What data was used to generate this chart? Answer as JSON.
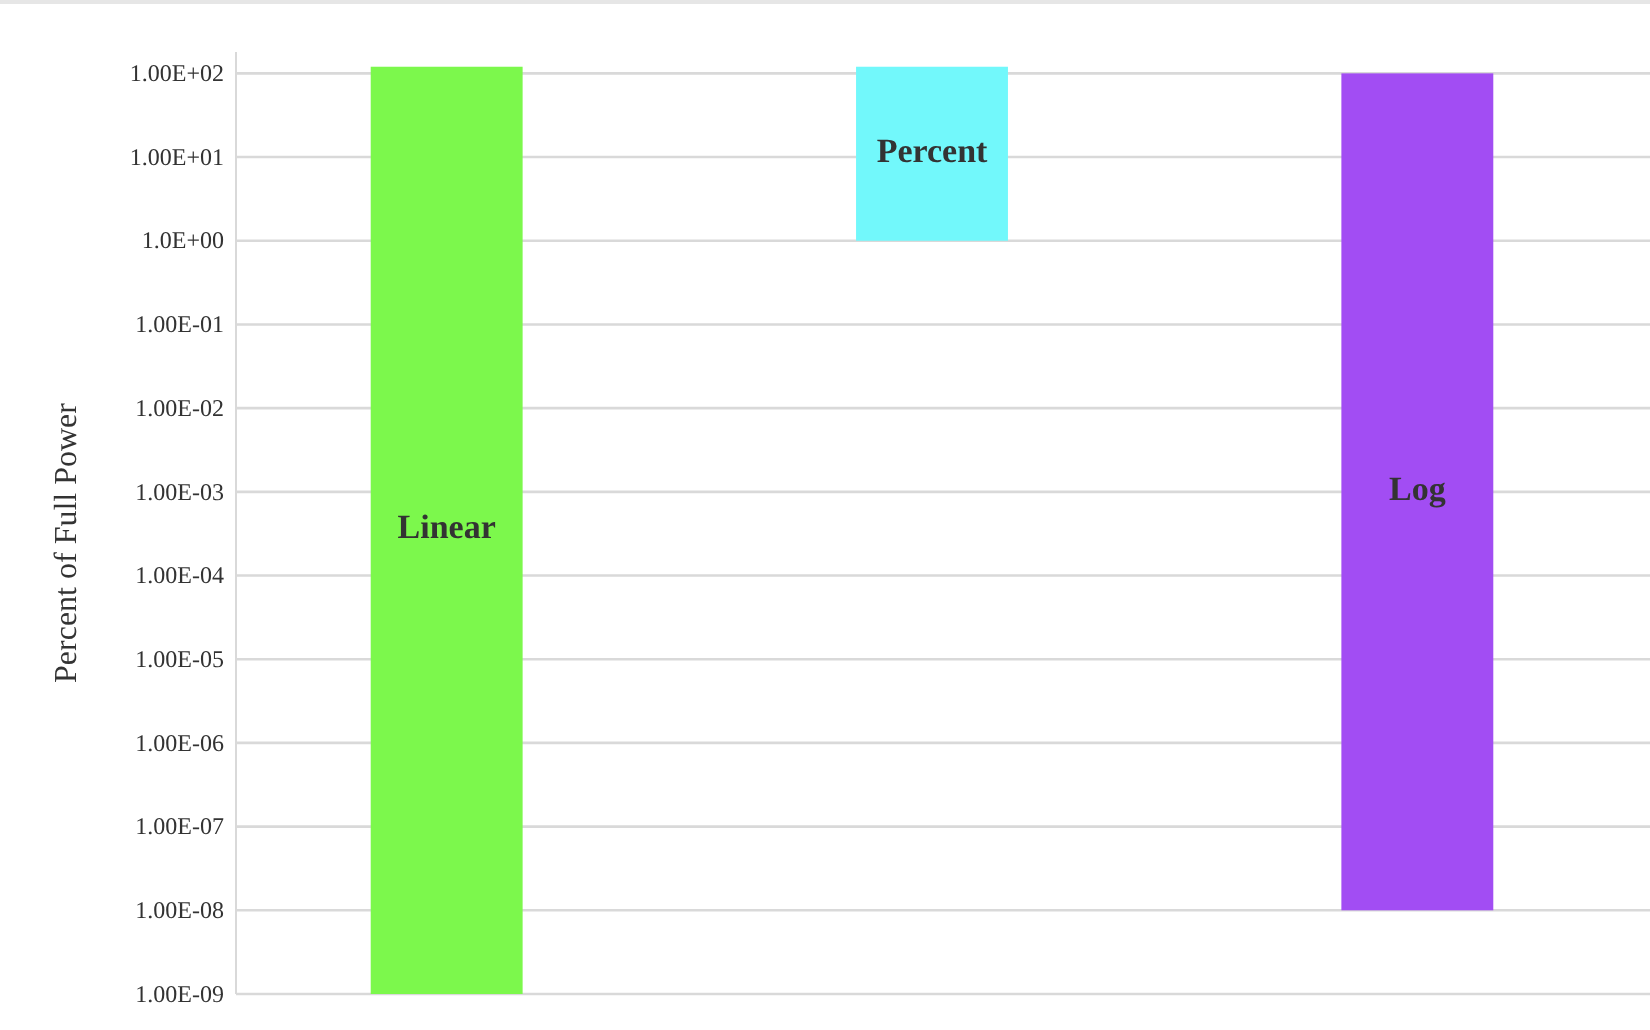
{
  "chart_data": {
    "type": "bar",
    "ylabel": "Percent of Full Power",
    "categories": [
      "Linear",
      "Percent",
      "Log"
    ],
    "base": [
      1e-09,
      1,
      1e-08
    ],
    "values": [
      120,
      119,
      100
    ],
    "colors": [
      "#7cf84c",
      "#72f8fb",
      "#a24df3"
    ],
    "log": true,
    "ylim": [
      1e-09,
      180
    ],
    "yticks": [
      {
        "value": 100,
        "label": "1.00E+02"
      },
      {
        "value": 10,
        "label": "1.00E+01"
      },
      {
        "value": 1,
        "label": "1.0E+00"
      },
      {
        "value": 0.1,
        "label": "1.00E-01"
      },
      {
        "value": 0.01,
        "label": "1.00E-02"
      },
      {
        "value": 0.001,
        "label": "1.00E-03"
      },
      {
        "value": 0.0001,
        "label": "1.00E-04"
      },
      {
        "value": 1e-05,
        "label": "1.00E-05"
      },
      {
        "value": 1e-06,
        "label": "1.00E-06"
      },
      {
        "value": 1e-07,
        "label": "1.00E-07"
      },
      {
        "value": 1e-08,
        "label": "1.00E-08"
      },
      {
        "value": 1e-09,
        "label": "1.00E-09"
      }
    ],
    "grid": "y",
    "tick_labels": "y"
  }
}
